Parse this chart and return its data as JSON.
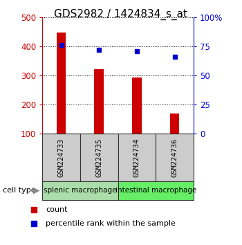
{
  "title": "GDS2982 / 1424834_s_at",
  "samples": [
    "GSM224733",
    "GSM224735",
    "GSM224734",
    "GSM224736"
  ],
  "counts": [
    447,
    322,
    292,
    170
  ],
  "percentile_ranks": [
    76,
    72,
    71,
    66
  ],
  "ylim_left": [
    100,
    500
  ],
  "ylim_right": [
    0,
    100
  ],
  "yticks_left": [
    100,
    200,
    300,
    400,
    500
  ],
  "yticks_right": [
    0,
    25,
    50,
    75,
    100
  ],
  "ytick_labels_right": [
    "0",
    "25",
    "50",
    "75",
    "100%"
  ],
  "bar_color": "#cc0000",
  "dot_color": "#0000cc",
  "bar_bottom": 100,
  "groups": [
    {
      "label": "splenic macrophage",
      "indices": [
        0,
        1
      ],
      "color": "#aaddaa"
    },
    {
      "label": "intestinal macrophage",
      "indices": [
        2,
        3
      ],
      "color": "#66ee66"
    }
  ],
  "cell_type_label": "cell type",
  "legend_count_label": "count",
  "legend_pct_label": "percentile rank within the sample",
  "title_fontsize": 11,
  "axis_label_color_left": "#cc0000",
  "axis_label_color_right": "#0000cc",
  "bar_width": 0.25,
  "sample_box_color": "#cccccc",
  "sample_box_edgecolor": "#333333"
}
